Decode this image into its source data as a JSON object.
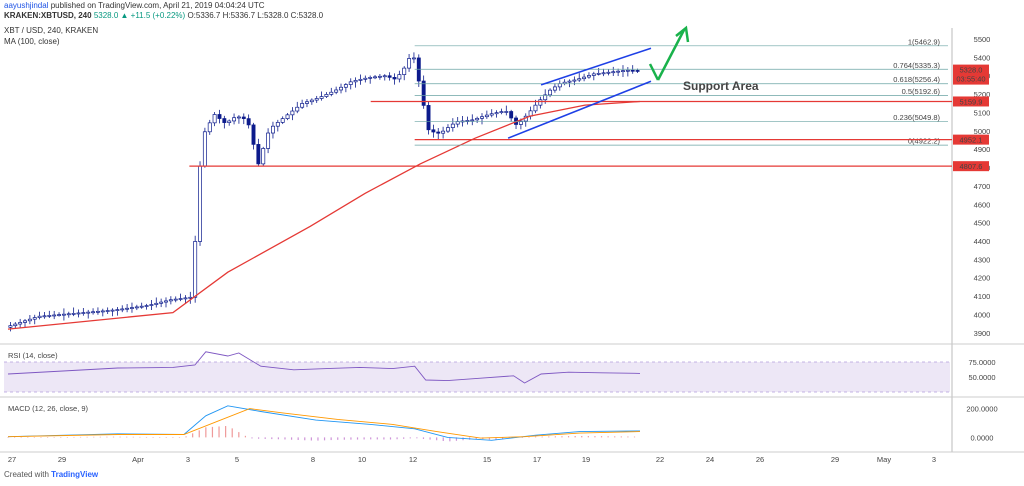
{
  "header": {
    "user": "aayushjindal",
    "published": "published on TradingView.com, April 21, 2019 04:04:24 UTC",
    "symbol_line": "KRAKEN:XBTUSD, 240",
    "change": "5328.0 ▲ +11.5 (+0.22%)",
    "ohlc": "O:5336.7 H:5336.7 L:5328.0 C:5328.0",
    "pair": "XBT / USD, 240, KRAKEN",
    "ma_label": "MA (100, close)"
  },
  "footer": {
    "created": "Created with",
    "brand": "TradingView"
  },
  "colors": {
    "up": "#26a69a",
    "down": "#ef5350",
    "candle": "#0c1b8c",
    "ma": "#e53935",
    "fib": "#6aa3a3",
    "support": "#e53935",
    "channel": "#1e40e6",
    "arrow": "#19b24b",
    "rsi": "#7e57c2",
    "macd": "#2196f3",
    "signal": "#ff9800"
  },
  "chart_data": [
    {
      "type": "candlestick",
      "x_labels": [
        "27",
        "29",
        "Apr",
        "3",
        "5",
        "8",
        "10",
        "12",
        "15",
        "17",
        "19",
        "22",
        "24",
        "26",
        "29",
        "May",
        "3"
      ],
      "y_ticks": [
        3900,
        4000,
        4100,
        4200,
        4300,
        4400,
        4500,
        4600,
        4700,
        4800,
        4900,
        5000,
        5100,
        5200,
        5300,
        5400,
        5500
      ],
      "ylim": [
        3850,
        5560
      ],
      "price_path": [
        [
          0,
          3930
        ],
        [
          6,
          3990
        ],
        [
          14,
          4010
        ],
        [
          20,
          4025
        ],
        [
          26,
          4050
        ],
        [
          30,
          4080
        ],
        [
          34,
          4095
        ],
        [
          35,
          4700
        ],
        [
          36,
          4980
        ],
        [
          38,
          5090
        ],
        [
          40,
          5040
        ],
        [
          42,
          5080
        ],
        [
          44,
          5060
        ],
        [
          46,
          4820
        ],
        [
          48,
          5010
        ],
        [
          51,
          5080
        ],
        [
          54,
          5150
        ],
        [
          57,
          5180
        ],
        [
          60,
          5220
        ],
        [
          63,
          5270
        ],
        [
          66,
          5290
        ],
        [
          69,
          5300
        ],
        [
          71,
          5280
        ],
        [
          73,
          5360
        ],
        [
          74,
          5440
        ],
        [
          75,
          5300
        ],
        [
          76,
          5150
        ],
        [
          77,
          5000
        ],
        [
          79,
          4985
        ],
        [
          82,
          5050
        ],
        [
          85,
          5060
        ],
        [
          88,
          5090
        ],
        [
          91,
          5110
        ],
        [
          93,
          5030
        ],
        [
          95,
          5090
        ],
        [
          97,
          5160
        ],
        [
          99,
          5220
        ],
        [
          101,
          5260
        ],
        [
          104,
          5280
        ],
        [
          107,
          5310
        ],
        [
          110,
          5320
        ],
        [
          113,
          5330
        ],
        [
          115,
          5328
        ]
      ],
      "ma_points": [
        [
          0,
          3920
        ],
        [
          30,
          4010
        ],
        [
          40,
          4230
        ],
        [
          55,
          4480
        ],
        [
          65,
          4660
        ],
        [
          75,
          4820
        ],
        [
          85,
          4960
        ],
        [
          95,
          5080
        ],
        [
          105,
          5140
        ],
        [
          115,
          5160
        ]
      ],
      "current_price": 5328.0,
      "current_time_label": "03:55:40",
      "fib_levels": [
        {
          "label": "1(5462.9)",
          "value": 5462.9
        },
        {
          "label": "0.764(5335.3)",
          "value": 5335.3
        },
        {
          "label": "0.618(5256.4)",
          "value": 5256.4
        },
        {
          "label": "0.5(5192.6)",
          "value": 5192.6
        },
        {
          "label": "0.236(5049.8)",
          "value": 5049.8
        },
        {
          "label": "0(4922.2)",
          "value": 4922.2
        }
      ],
      "support_lines": [
        {
          "label": "5159.9",
          "value": 5159.9
        },
        {
          "label": "4952.1",
          "value": 4952.1
        },
        {
          "label": "4807.6",
          "value": 4807.6
        }
      ],
      "annotation": "Support Area"
    },
    {
      "type": "line",
      "name": "RSI (14, close)",
      "y_ticks": [
        50,
        75
      ],
      "y_tick_labels": [
        "50.0000",
        "75.0000"
      ],
      "ylim": [
        20,
        100
      ],
      "points": [
        [
          0,
          55
        ],
        [
          10,
          60
        ],
        [
          20,
          65
        ],
        [
          30,
          66
        ],
        [
          34,
          70
        ],
        [
          36,
          92
        ],
        [
          40,
          85
        ],
        [
          42,
          90
        ],
        [
          46,
          68
        ],
        [
          52,
          62
        ],
        [
          58,
          64
        ],
        [
          64,
          66
        ],
        [
          70,
          64
        ],
        [
          74,
          68
        ],
        [
          76,
          45
        ],
        [
          80,
          44
        ],
        [
          86,
          48
        ],
        [
          92,
          52
        ],
        [
          94,
          40
        ],
        [
          97,
          55
        ],
        [
          102,
          58
        ],
        [
          108,
          57
        ],
        [
          115,
          56
        ]
      ]
    },
    {
      "type": "macd",
      "name": "MACD (12, 26, close, 9)",
      "y_ticks": [
        0,
        200
      ],
      "y_tick_labels": [
        "0.0000",
        "200.0000"
      ],
      "ylim": [
        -60,
        260
      ],
      "macd": [
        [
          0,
          5
        ],
        [
          20,
          25
        ],
        [
          32,
          20
        ],
        [
          36,
          150
        ],
        [
          40,
          220
        ],
        [
          46,
          180
        ],
        [
          56,
          120
        ],
        [
          66,
          90
        ],
        [
          74,
          60
        ],
        [
          80,
          0
        ],
        [
          88,
          -20
        ],
        [
          96,
          15
        ],
        [
          104,
          40
        ],
        [
          115,
          45
        ]
      ],
      "signal": [
        [
          0,
          5
        ],
        [
          20,
          20
        ],
        [
          32,
          20
        ],
        [
          38,
          110
        ],
        [
          44,
          200
        ],
        [
          50,
          170
        ],
        [
          60,
          125
        ],
        [
          70,
          90
        ],
        [
          78,
          40
        ],
        [
          86,
          -5
        ],
        [
          94,
          5
        ],
        [
          104,
          30
        ],
        [
          115,
          40
        ]
      ]
    }
  ]
}
